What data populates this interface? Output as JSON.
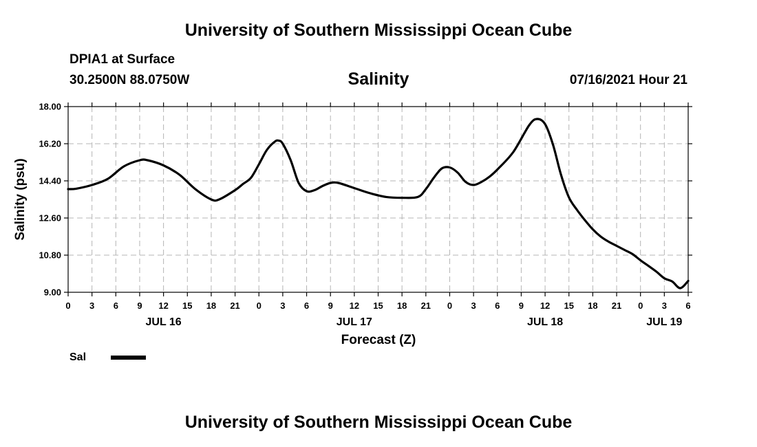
{
  "header": {
    "title": "University of Southern Mississippi Ocean Cube",
    "station": "DPIA1 at Surface",
    "coordinates": "30.2500N  88.0750W",
    "chart_title": "Salinity",
    "run_time": "07/16/2021 Hour 21"
  },
  "footer": {
    "title": "University of Southern Mississippi Ocean Cube"
  },
  "legend": {
    "label": "Sal"
  },
  "colors": {
    "line": "#000000",
    "grid": "#b4b4b4",
    "background": "#ffffff"
  },
  "chart_data": {
    "type": "line",
    "title": "Salinity",
    "xlabel": "Forecast (Z)",
    "ylabel": "Salinity (psu)",
    "ylim": [
      9.0,
      18.0
    ],
    "yticks": [
      "9.00",
      "10.80",
      "12.60",
      "14.40",
      "16.20",
      "18.00"
    ],
    "xlim_hours": [
      0,
      78
    ],
    "xtick_hours": [
      0,
      3,
      6,
      9,
      12,
      15,
      18,
      21,
      24,
      27,
      30,
      33,
      36,
      39,
      42,
      45,
      48,
      51,
      54,
      57,
      60,
      63,
      66,
      69,
      72,
      75,
      78
    ],
    "xtick_labels": [
      "0",
      "3",
      "6",
      "9",
      "12",
      "15",
      "18",
      "21",
      "0",
      "3",
      "6",
      "9",
      "12",
      "15",
      "18",
      "21",
      "0",
      "3",
      "6",
      "9",
      "12",
      "15",
      "18",
      "21",
      "0",
      "3",
      "6"
    ],
    "date_labels": [
      {
        "label": "JUL 16",
        "hour": 12
      },
      {
        "label": "JUL 17",
        "hour": 36
      },
      {
        "label": "JUL 18",
        "hour": 60
      },
      {
        "label": "JUL 19",
        "hour": 75
      }
    ],
    "grid": true,
    "series": [
      {
        "name": "Sal",
        "x": [
          0,
          1,
          3,
          5,
          7,
          9,
          10,
          12,
          14,
          16,
          18,
          19,
          21,
          22,
          23,
          24,
          25,
          26,
          26.5,
          27,
          28,
          29,
          30,
          31,
          32,
          33,
          34,
          36,
          38,
          40,
          42,
          44,
          45,
          46,
          47,
          48,
          49,
          50,
          51,
          52,
          53,
          54,
          56,
          58,
          59,
          60,
          61,
          62,
          63,
          64,
          65,
          66,
          67,
          68,
          69,
          70,
          71,
          72,
          73,
          74,
          75,
          76,
          77,
          78
        ],
        "y": [
          14.0,
          14.02,
          14.2,
          14.5,
          15.1,
          15.4,
          15.4,
          15.15,
          14.7,
          14.0,
          13.5,
          13.5,
          13.95,
          14.25,
          14.55,
          15.2,
          15.9,
          16.3,
          16.35,
          16.2,
          15.4,
          14.3,
          13.9,
          13.95,
          14.15,
          14.3,
          14.3,
          14.05,
          13.8,
          13.62,
          13.58,
          13.62,
          14.0,
          14.55,
          15.0,
          15.05,
          14.8,
          14.35,
          14.2,
          14.35,
          14.6,
          14.95,
          15.8,
          17.1,
          17.4,
          17.15,
          16.15,
          14.7,
          13.6,
          13.0,
          12.5,
          12.05,
          11.7,
          11.45,
          11.25,
          11.05,
          10.85,
          10.55,
          10.28,
          10.0,
          9.68,
          9.52,
          9.2,
          9.55
        ]
      }
    ]
  }
}
